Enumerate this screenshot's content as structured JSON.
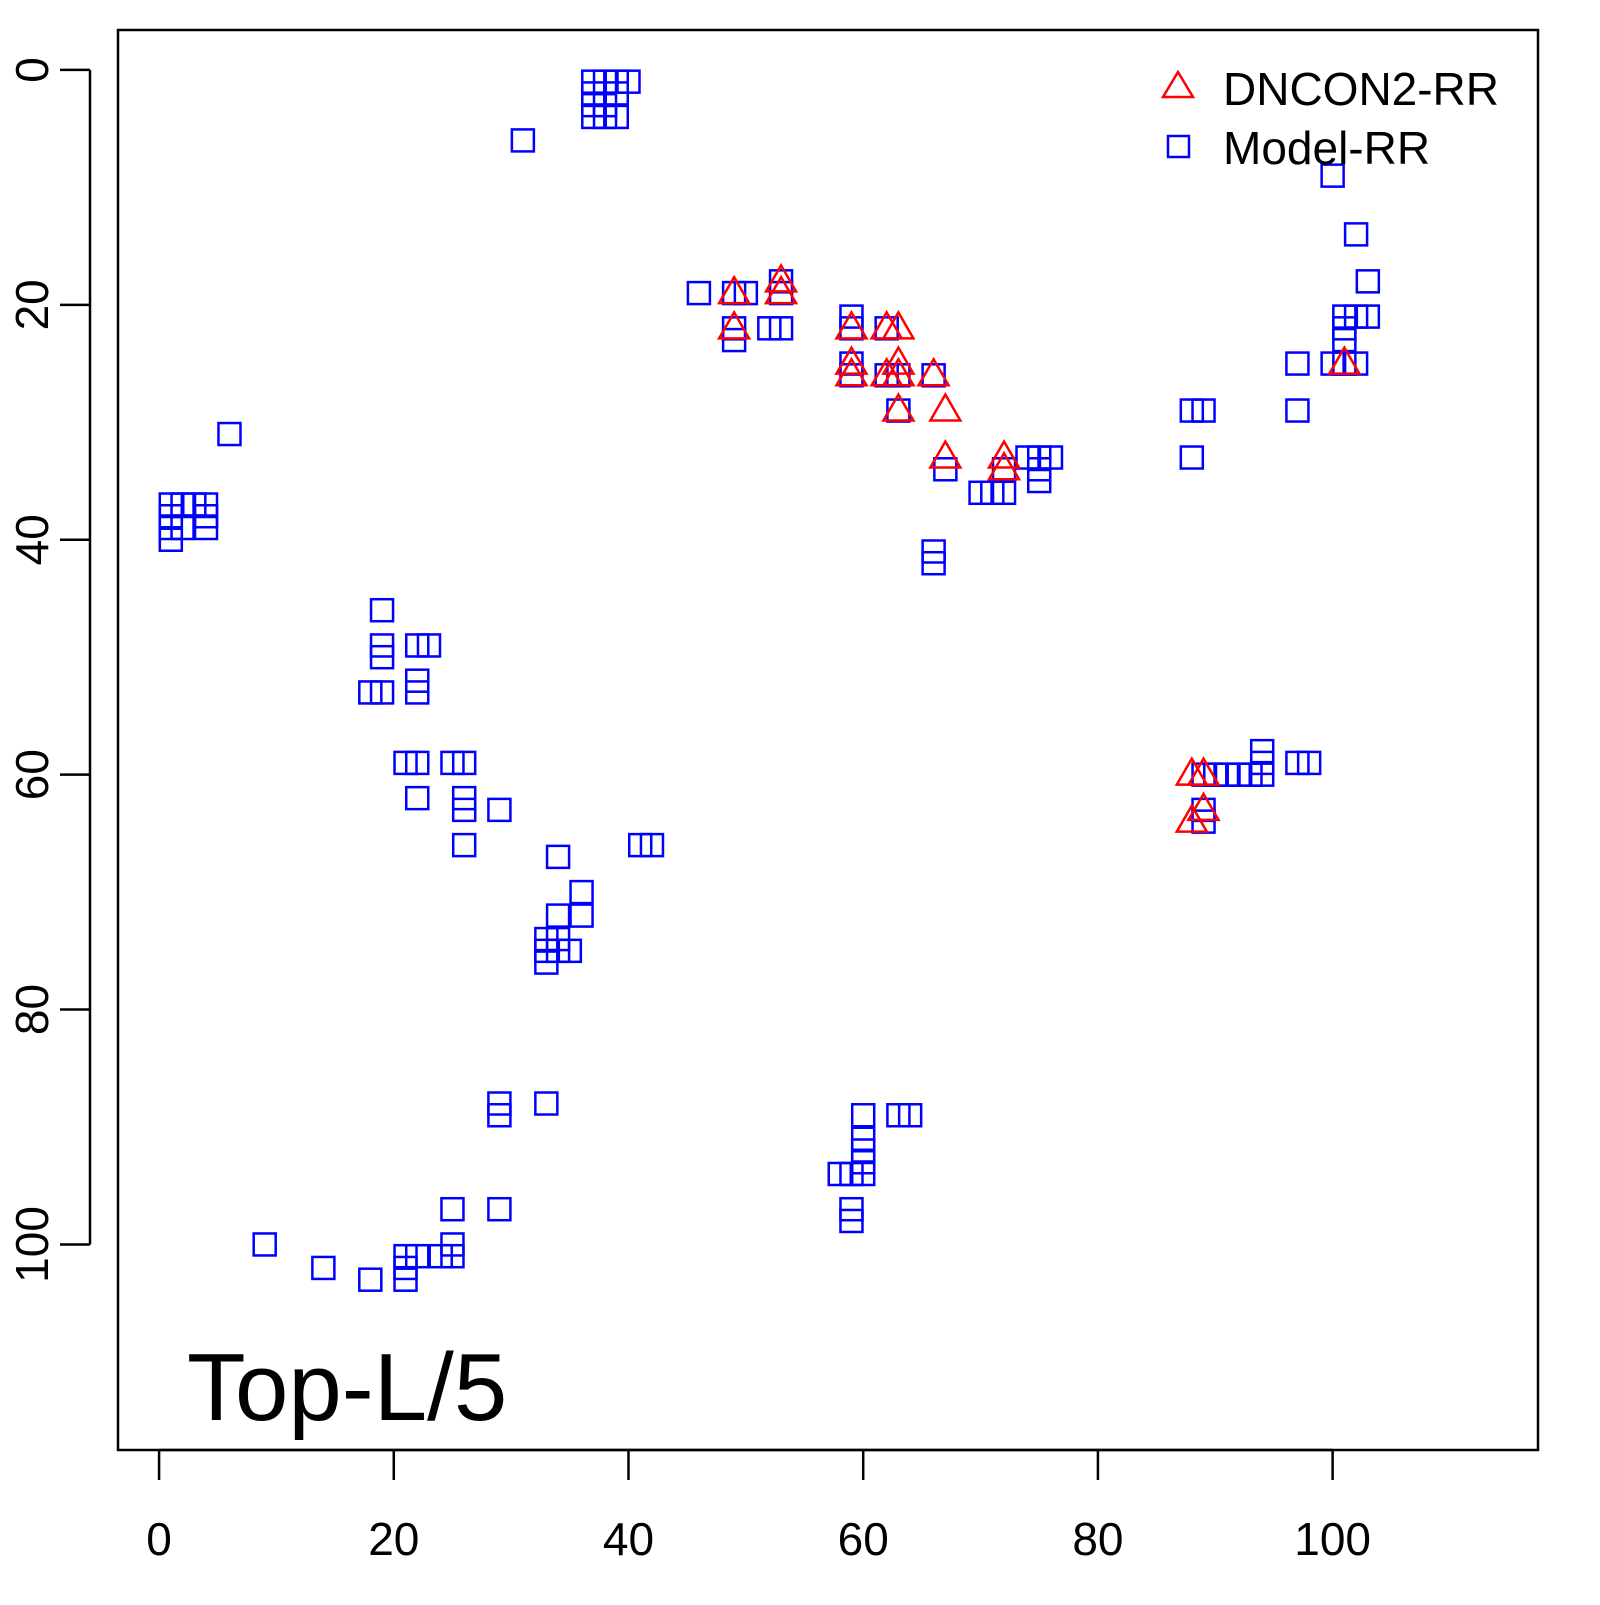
{
  "chart_data": {
    "type": "scatter",
    "title": "",
    "annotation": "Top-L/5",
    "xlabel": "",
    "ylabel": "",
    "xlim": [
      -3.5,
      117.5
    ],
    "ylim": [
      117.5,
      -3.4
    ],
    "y_inverted": true,
    "xticks": [
      0,
      20,
      40,
      60,
      80,
      100
    ],
    "yticks": [
      0,
      20,
      40,
      60,
      80,
      100
    ],
    "grid": false,
    "legend_position": "top-right",
    "colors": {
      "DNCON2-RR": "#ff0000",
      "Model-RR": "#0000ff",
      "axis": "#000000"
    },
    "series": [
      {
        "name": "DNCON2-RR",
        "marker": "triangle",
        "points": [
          [
            49,
            19
          ],
          [
            49,
            22
          ],
          [
            53,
            18
          ],
          [
            53,
            19
          ],
          [
            59,
            22
          ],
          [
            59,
            25
          ],
          [
            59,
            26
          ],
          [
            62,
            22
          ],
          [
            63,
            22
          ],
          [
            62,
            26
          ],
          [
            63,
            25
          ],
          [
            63,
            26
          ],
          [
            63,
            29
          ],
          [
            66,
            26
          ],
          [
            67,
            29
          ],
          [
            67,
            33
          ],
          [
            72,
            33
          ],
          [
            72,
            34
          ],
          [
            88,
            60
          ],
          [
            89,
            60
          ],
          [
            88,
            64
          ],
          [
            89,
            63
          ],
          [
            101,
            25
          ]
        ]
      },
      {
        "name": "Model-RR",
        "marker": "square",
        "points": [
          [
            37,
            1
          ],
          [
            38,
            1
          ],
          [
            39,
            1
          ],
          [
            40,
            1
          ],
          [
            37,
            2
          ],
          [
            39,
            2
          ],
          [
            37,
            3
          ],
          [
            38,
            3
          ],
          [
            37,
            4
          ],
          [
            38,
            4
          ],
          [
            39,
            4
          ],
          [
            31,
            6
          ],
          [
            1,
            37
          ],
          [
            2,
            37
          ],
          [
            3,
            37
          ],
          [
            4,
            37
          ],
          [
            1,
            38
          ],
          [
            4,
            38
          ],
          [
            1,
            39
          ],
          [
            2,
            39
          ],
          [
            4,
            39
          ],
          [
            1,
            40
          ],
          [
            6,
            31
          ],
          [
            19,
            46
          ],
          [
            19,
            49
          ],
          [
            19,
            50
          ],
          [
            22,
            49
          ],
          [
            23,
            49
          ],
          [
            18,
            53
          ],
          [
            19,
            53
          ],
          [
            22,
            52
          ],
          [
            22,
            53
          ],
          [
            21,
            59
          ],
          [
            22,
            59
          ],
          [
            25,
            59
          ],
          [
            26,
            59
          ],
          [
            22,
            62
          ],
          [
            26,
            62
          ],
          [
            26,
            63
          ],
          [
            26,
            66
          ],
          [
            29,
            63
          ],
          [
            34,
            67
          ],
          [
            36,
            70
          ],
          [
            34,
            72
          ],
          [
            36,
            72
          ],
          [
            33,
            74
          ],
          [
            34,
            74
          ],
          [
            33,
            75
          ],
          [
            34,
            75
          ],
          [
            35,
            75
          ],
          [
            33,
            76
          ],
          [
            41,
            66
          ],
          [
            42,
            66
          ],
          [
            29,
            88
          ],
          [
            29,
            89
          ],
          [
            33,
            88
          ],
          [
            25,
            97
          ],
          [
            29,
            97
          ],
          [
            9,
            100
          ],
          [
            14,
            102
          ],
          [
            18,
            103
          ],
          [
            21,
            101
          ],
          [
            22,
            101
          ],
          [
            24,
            101
          ],
          [
            25,
            100
          ],
          [
            25,
            101
          ],
          [
            21,
            102
          ],
          [
            21,
            103
          ],
          [
            58,
            94
          ],
          [
            59,
            94
          ],
          [
            60,
            94
          ],
          [
            60,
            89
          ],
          [
            60,
            91
          ],
          [
            60,
            92
          ],
          [
            60,
            93
          ],
          [
            59,
            97
          ],
          [
            59,
            98
          ],
          [
            63,
            89
          ],
          [
            64,
            89
          ],
          [
            46,
            19
          ],
          [
            49,
            19
          ],
          [
            50,
            19
          ],
          [
            49,
            22
          ],
          [
            49,
            23
          ],
          [
            52,
            22
          ],
          [
            53,
            22
          ],
          [
            53,
            18
          ],
          [
            53,
            19
          ],
          [
            59,
            21
          ],
          [
            59,
            22
          ],
          [
            59,
            25
          ],
          [
            59,
            26
          ],
          [
            62,
            22
          ],
          [
            62,
            26
          ],
          [
            63,
            26
          ],
          [
            63,
            29
          ],
          [
            66,
            26
          ],
          [
            66,
            41
          ],
          [
            66,
            42
          ],
          [
            67,
            34
          ],
          [
            70,
            36
          ],
          [
            71,
            36
          ],
          [
            72,
            34
          ],
          [
            72,
            36
          ],
          [
            74,
            33
          ],
          [
            75,
            33
          ],
          [
            76,
            33
          ],
          [
            75,
            34
          ],
          [
            75,
            35
          ],
          [
            88,
            29
          ],
          [
            89,
            29
          ],
          [
            88,
            33
          ],
          [
            89,
            60
          ],
          [
            90,
            60
          ],
          [
            91,
            60
          ],
          [
            92,
            60
          ],
          [
            93,
            60
          ],
          [
            94,
            58
          ],
          [
            94,
            59
          ],
          [
            94,
            60
          ],
          [
            97,
            59
          ],
          [
            98,
            59
          ],
          [
            89,
            63
          ],
          [
            89,
            64
          ],
          [
            100,
            9
          ],
          [
            102,
            14
          ],
          [
            103,
            18
          ],
          [
            101,
            21
          ],
          [
            102,
            21
          ],
          [
            103,
            21
          ],
          [
            101,
            22
          ],
          [
            101,
            23
          ],
          [
            100,
            25
          ],
          [
            101,
            25
          ],
          [
            102,
            25
          ],
          [
            97,
            25
          ],
          [
            97,
            29
          ]
        ]
      }
    ]
  }
}
